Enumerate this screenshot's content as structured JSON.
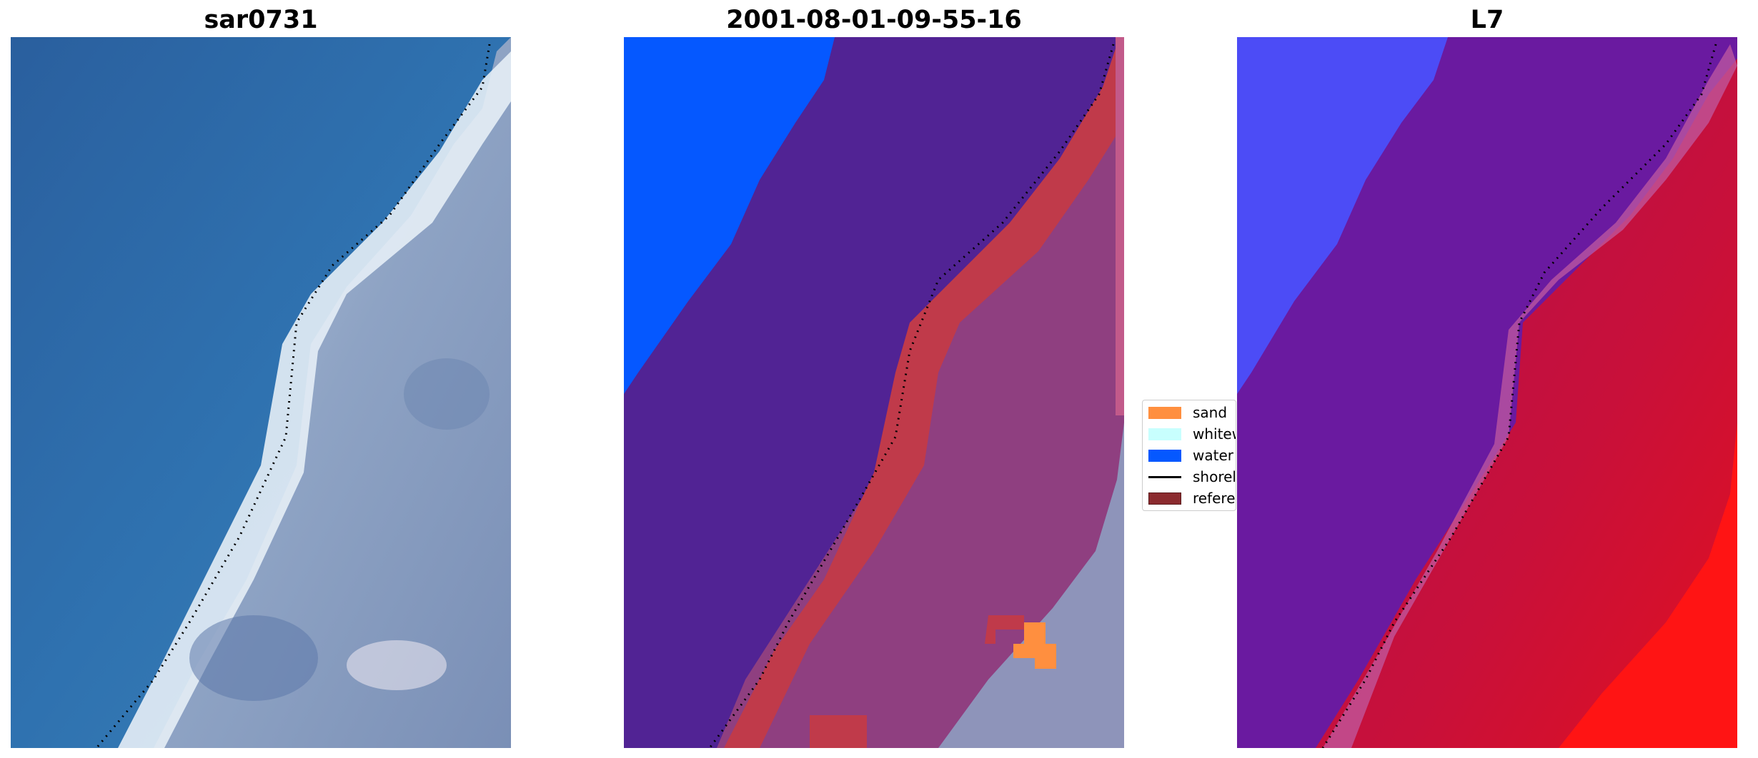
{
  "panels": [
    {
      "title": "sar0731"
    },
    {
      "title": "2001-08-01-09-55-16"
    },
    {
      "title": "L7"
    }
  ],
  "legend": {
    "items": [
      {
        "label": "sand",
        "color": "#ff8f3f",
        "kind": "patch"
      },
      {
        "label": "whitew",
        "color": "#c8fffe",
        "kind": "patch"
      },
      {
        "label": "water",
        "color": "#0558ff",
        "kind": "patch"
      },
      {
        "label": "shorel",
        "color": "#000000",
        "kind": "line"
      },
      {
        "label": "referen",
        "color": "#8b2a2e",
        "kind": "patch"
      }
    ]
  },
  "colors": {
    "ocean": "#2f72b0",
    "whitewater": "#e6eef6",
    "land": "#8ea3c4",
    "class_water": "#0558ff",
    "class_sea": "#512394",
    "class_reference": "#c03a4a",
    "class_land": "#8f3f80",
    "class_sand": "#ff8f3f",
    "l7_water": "#4c4cf6",
    "l7_sea": "#6a1aa0",
    "l7_land": "#c01040",
    "l7_bright": "#ff1414"
  }
}
